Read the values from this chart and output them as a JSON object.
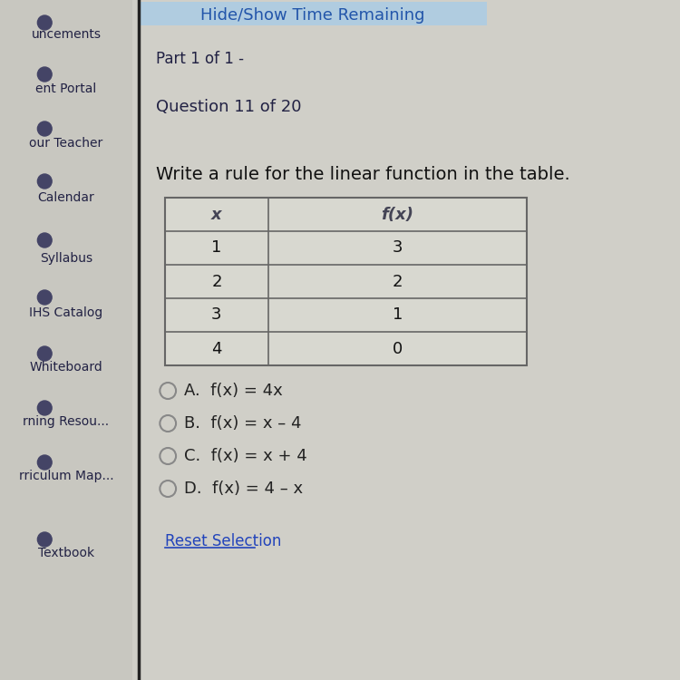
{
  "bg_color": "#d0cfc8",
  "sidebar_color": "#c8c7c0",
  "header_bar_color": "#b0cce0",
  "header_text": "Hide/Show Time Remaining",
  "header_text_color": "#2255aa",
  "part_text": "Part 1 of 1 -",
  "question_text": "Question 11 of 20",
  "question_color": "#222244",
  "prompt": "Write a rule for the linear function in the table.",
  "prompt_color": "#111111",
  "sidebar_labels": [
    "uncements",
    "ent Portal",
    "our Teacher",
    "Calendar",
    "Syllabus",
    "IHS Catalog",
    "Whiteboard",
    "rning Resou...",
    "rriculum Map...",
    "Textbook"
  ],
  "table_headers": [
    "x",
    "f(x)"
  ],
  "table_data": [
    [
      1,
      3
    ],
    [
      2,
      2
    ],
    [
      3,
      1
    ],
    [
      4,
      0
    ]
  ],
  "table_header_color": "#444455",
  "table_bg": "#d8d8d0",
  "table_border_color": "#666666",
  "choices": [
    "A.  f(x) = 4x",
    "B.  f(x) = x – 4",
    "C.  f(x) = x + 4",
    "D.  f(x) = 4 – x"
  ],
  "choice_color": "#222222",
  "circle_color": "#888888",
  "reset_text": "Reset Selection",
  "reset_color": "#2244bb",
  "vertical_bar_color": "#222222",
  "sidebar_icon_color": "#444466",
  "font_size_header": 13,
  "font_size_part": 12,
  "font_size_question": 13,
  "font_size_prompt": 14,
  "font_size_table": 13,
  "font_size_choices": 13,
  "font_size_reset": 12,
  "font_size_sidebar": 10
}
